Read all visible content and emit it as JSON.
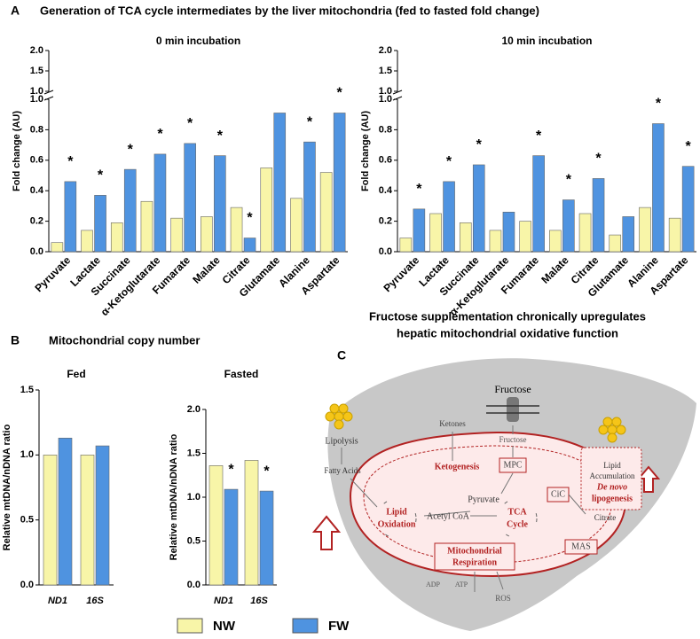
{
  "chart_data": [
    {
      "type": "bar",
      "title": "0 min incubation",
      "ylabel": "Fold change (AU)",
      "categories": [
        "Pyruvate",
        "Lactate",
        "Succinate",
        "α-Ketoglutarate",
        "Fumarate",
        "Malate",
        "Citrate",
        "Glutamate",
        "Alanine",
        "Aspartate"
      ],
      "series": [
        {
          "name": "NW",
          "color": "#f8f5a8",
          "values": [
            0.06,
            0.14,
            0.19,
            0.33,
            0.22,
            0.23,
            0.29,
            0.55,
            0.35,
            0.52
          ]
        },
        {
          "name": "FW",
          "color": "#4f93e0",
          "values": [
            0.46,
            0.37,
            0.54,
            0.64,
            0.71,
            0.63,
            0.09,
            0.91,
            0.72,
            0.91
          ]
        }
      ],
      "stars": [
        "*",
        "*",
        "*",
        "*",
        "*",
        "*",
        "*",
        null,
        "*",
        "*"
      ],
      "ylim": [
        0,
        1
      ],
      "yticks": [
        {
          "value": 0,
          "label": "0.0"
        },
        0.2,
        0.4,
        0.6,
        0.8,
        {
          "value": 1,
          "label": "1.0"
        }
      ],
      "ylim_upper": [
        1,
        2
      ],
      "yticks_upper": [
        {
          "value": 1,
          "label": "1.0"
        },
        1.5,
        {
          "value": 2,
          "label": "2.0"
        }
      ]
    },
    {
      "type": "bar",
      "title": "10 min incubation",
      "ylabel": "Fold change (AU)",
      "categories": [
        "Pyruvate",
        "Lactate",
        "Succinate",
        "α-Ketoglutarate",
        "Fumarate",
        "Malate",
        "Citrate",
        "Glutamate",
        "Alanine",
        "Aspartate"
      ],
      "series": [
        {
          "name": "NW",
          "color": "#f8f5a8",
          "values": [
            0.09,
            0.25,
            0.19,
            0.14,
            0.2,
            0.14,
            0.25,
            0.11,
            0.29,
            0.22
          ]
        },
        {
          "name": "FW",
          "color": "#4f93e0",
          "values": [
            0.28,
            0.46,
            0.57,
            0.26,
            0.63,
            0.34,
            0.48,
            0.23,
            0.84,
            0.56
          ]
        }
      ],
      "stars": [
        "*",
        "*",
        "*",
        null,
        "*",
        "*",
        "*",
        null,
        "*",
        "*"
      ],
      "ylim": [
        0,
        1
      ],
      "yticks": [
        {
          "value": 0,
          "label": "0.0"
        },
        0.2,
        0.4,
        0.6,
        0.8,
        {
          "value": 1,
          "label": "1.0"
        }
      ],
      "ylim_upper": [
        1,
        2
      ],
      "yticks_upper": [
        {
          "value": 1,
          "label": "1.0"
        },
        1.5,
        {
          "value": 2,
          "label": "2.0"
        }
      ]
    },
    {
      "type": "bar",
      "title": "Fed",
      "ylabel": "Relative mtDNA/nDNA ratio",
      "categories": [
        "ND1",
        "16S"
      ],
      "series": [
        {
          "name": "NW",
          "color": "#f8f5a8",
          "values": [
            1.0,
            1.0
          ]
        },
        {
          "name": "FW",
          "color": "#4f93e0",
          "values": [
            1.13,
            1.07
          ]
        }
      ],
      "stars": [
        null,
        null
      ],
      "ylim": [
        0,
        1.5
      ],
      "yticks": [
        {
          "value": 0,
          "label": "0.0"
        },
        0.5,
        {
          "value": 1,
          "label": "1.0"
        },
        1.5
      ]
    },
    {
      "type": "bar",
      "title": "Fasted",
      "ylabel": "Relative mtDNA/nDNA ratio",
      "categories": [
        "ND1",
        "16S"
      ],
      "series": [
        {
          "name": "NW",
          "color": "#f8f5a8",
          "values": [
            1.36,
            1.42
          ]
        },
        {
          "name": "FW",
          "color": "#4f93e0",
          "values": [
            1.09,
            1.07
          ]
        }
      ],
      "stars": [
        "*",
        "*"
      ],
      "ylim": [
        0,
        2
      ],
      "yticks": [
        {
          "value": 0,
          "label": "0.0"
        },
        0.5,
        {
          "value": 1,
          "label": "1.0"
        },
        1.5,
        {
          "value": 2,
          "label": "2.0"
        }
      ]
    }
  ],
  "figure": {
    "panel_a": {
      "letter": "A",
      "title": "Generation of TCA cycle intermediates by the liver mitochondria  (fed to fasted fold change)"
    },
    "panel_b": {
      "letter": "B",
      "title": "Mitochondrial copy number"
    },
    "panel_c": {
      "letter": "C",
      "title_lines": [
        "Fructose supplementation chronically upregulates",
        "hepatic mitochondrial oxidative function"
      ],
      "labels": [
        "Fructose",
        "Fructose",
        "Ketones",
        "MPC",
        "Lipolysis",
        "Fatty Acids",
        "Ketogenesis",
        "Pyruvate",
        "Lipid",
        "Oxidation",
        "Acetyl CoA",
        "TCA",
        "Cycle",
        "CiC",
        "Citrate",
        "Lipid",
        "Accumulation",
        "De novo",
        "lipogenesis",
        "MAS",
        "Mitochondrial",
        "Respiration",
        "ADP",
        "ATP",
        "ROS"
      ]
    }
  }
}
